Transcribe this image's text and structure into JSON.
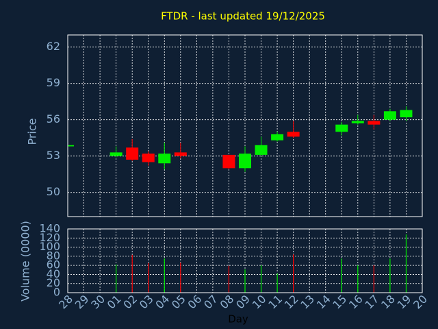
{
  "chart_data": {
    "type": "candlestick",
    "title": "FTDR - last updated 19/12/2025",
    "ylabel": "Price",
    "volume_ylabel": "Volume (0000)",
    "xlabel": "Day",
    "categories": [
      "28",
      "29",
      "30",
      "01",
      "02",
      "03",
      "04",
      "05",
      "06",
      "07",
      "08",
      "09",
      "10",
      "11",
      "12",
      "13",
      "14",
      "15",
      "16",
      "17",
      "18",
      "19",
      "20"
    ],
    "open": [
      53.8,
      null,
      null,
      53.0,
      53.7,
      53.2,
      52.4,
      53.3,
      null,
      null,
      53.1,
      52.0,
      53.1,
      54.3,
      55.0,
      null,
      null,
      55.0,
      55.7,
      55.9,
      56.0,
      56.2,
      null
    ],
    "high": [
      53.9,
      null,
      null,
      53.8,
      54.4,
      53.4,
      54.1,
      54.1,
      null,
      null,
      53.1,
      53.8,
      54.6,
      55.0,
      55.9,
      null,
      null,
      55.8,
      56.4,
      56.4,
      56.9,
      57.1,
      null
    ],
    "low": [
      53.8,
      null,
      null,
      52.9,
      52.6,
      52.2,
      51.9,
      52.8,
      null,
      null,
      51.9,
      51.7,
      53.0,
      54.2,
      54.5,
      null,
      null,
      54.7,
      55.6,
      55.2,
      55.9,
      55.9,
      null
    ],
    "close": [
      53.9,
      null,
      null,
      53.3,
      52.7,
      52.5,
      53.2,
      53.0,
      null,
      null,
      52.0,
      53.2,
      53.9,
      54.8,
      54.6,
      null,
      null,
      55.6,
      55.9,
      55.6,
      56.7,
      56.8,
      null
    ],
    "volume": [
      null,
      null,
      null,
      62,
      83,
      65,
      75,
      66,
      null,
      null,
      59,
      51,
      60,
      42,
      84,
      null,
      null,
      75,
      60,
      60,
      75,
      128,
      null
    ],
    "up_color": "#00ee00",
    "down_color": "#ff0000",
    "ylim": [
      48,
      63
    ],
    "yticks": [
      50,
      53,
      56,
      59,
      62
    ],
    "volume_ylim": [
      0,
      140
    ],
    "volume_yticks": [
      0,
      20,
      40,
      60,
      80,
      100,
      120,
      140
    ],
    "grid": true
  }
}
